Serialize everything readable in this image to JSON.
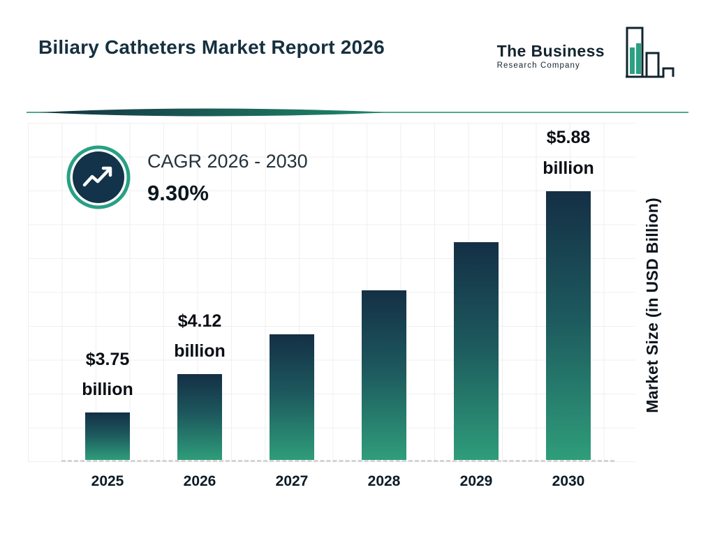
{
  "header": {
    "title": "Biliary Catheters Market Report 2026",
    "logo": {
      "line1": "The Business",
      "line2": "Research Company"
    }
  },
  "cagr": {
    "label": "CAGR 2026 - 2030",
    "value": "9.30%"
  },
  "chart_data": {
    "type": "bar",
    "categories": [
      "2025",
      "2026",
      "2027",
      "2028",
      "2029",
      "2030"
    ],
    "values": [
      3.75,
      4.12,
      4.5,
      4.92,
      5.38,
      5.88
    ],
    "bars": [
      {
        "year": "2025",
        "value": 3.75,
        "amount": "$3.75",
        "unit": "billion"
      },
      {
        "year": "2026",
        "value": 4.12,
        "amount": "$4.12",
        "unit": "billion"
      },
      {
        "year": "2027",
        "value": 4.5
      },
      {
        "year": "2028",
        "value": 4.92
      },
      {
        "year": "2029",
        "value": 5.38
      },
      {
        "year": "2030",
        "value": 5.88,
        "amount": "$5.88",
        "unit": "billion"
      }
    ],
    "ylabel": "Market Size (in USD Billion)",
    "ylim": [
      3.3,
      5.9
    ],
    "grid": true,
    "legend": false,
    "colors": {
      "bar_top": "#142f45",
      "bar_bottom": "#2f9d7a",
      "accent_teal": "#2aa183",
      "navy": "#12334a",
      "grid": "#efefef"
    }
  }
}
